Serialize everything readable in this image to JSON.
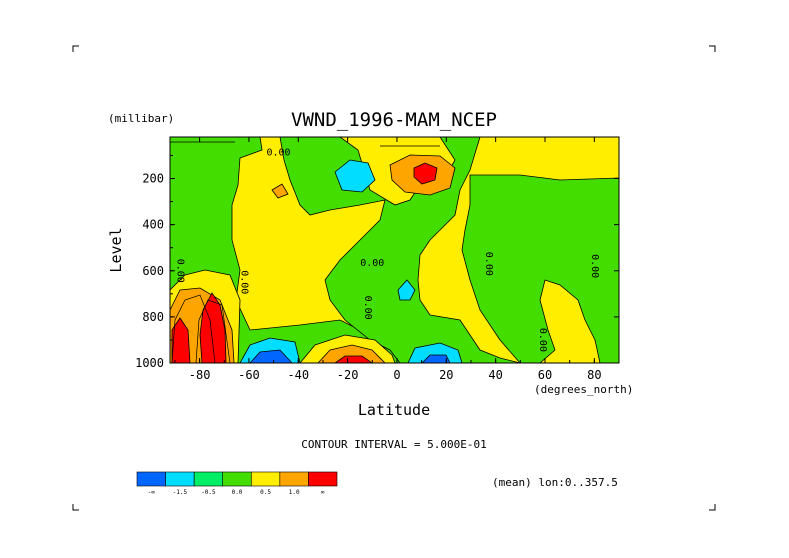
{
  "chart_data": {
    "type": "contour",
    "title": "VWND_1996-MAM_NCEP",
    "xlabel": "Latitude",
    "x_unit": "(degrees_north)",
    "ylabel": "Level",
    "y_unit": "(millibar)",
    "xlim": [
      -92,
      90
    ],
    "ylim": [
      1000,
      20
    ],
    "y_inverted": true,
    "x_ticks": [
      -80,
      -60,
      -40,
      -20,
      0,
      20,
      40,
      60,
      80
    ],
    "y_ticks": [
      200,
      400,
      600,
      800,
      1000
    ],
    "contour_interval_label": "CONTOUR INTERVAL = 5.000E-01",
    "mean_label": "(mean) lon:0..357.5",
    "contour_labels": [
      {
        "text": "0.00",
        "lat": -48,
        "lev": 100
      },
      {
        "text": "0.00",
        "lat": -10,
        "lev": 580
      },
      {
        "text": "0.00",
        "lat": -89,
        "lev": 600,
        "vertical": true
      },
      {
        "text": "0.00",
        "lat": -63,
        "lev": 650,
        "vertical": true
      },
      {
        "text": "0.00",
        "lat": -13,
        "lev": 760,
        "vertical": true
      },
      {
        "text": "0.00",
        "lat": 36,
        "lev": 570,
        "vertical": true
      },
      {
        "text": "0.00",
        "lat": 58,
        "lev": 900,
        "vertical": true
      },
      {
        "text": "0.00",
        "lat": 79,
        "lev": 580,
        "vertical": true
      }
    ],
    "colorbar": {
      "colors": [
        "#0066ff",
        "#00ddff",
        "#00ee66",
        "#44dd00",
        "#ffee00",
        "#ffa500",
        "#ff0000"
      ],
      "labels": [
        "-∞",
        "-1.5",
        "-0.5",
        "0.0",
        "0.5",
        "1.0",
        "∞"
      ]
    }
  }
}
